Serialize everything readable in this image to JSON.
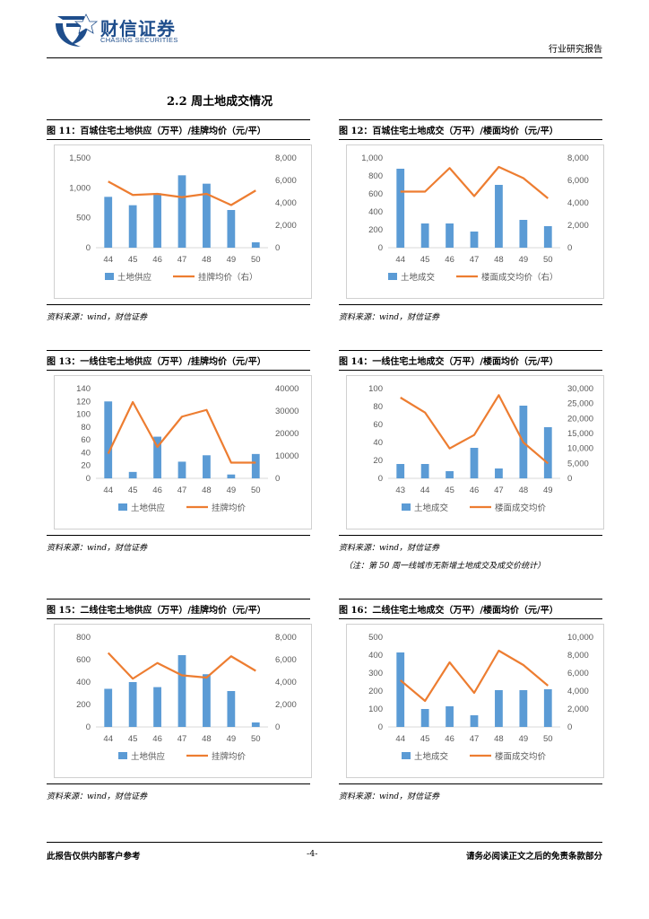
{
  "header": {
    "logo_cn": "财信证券",
    "logo_en": "CHASING SECURITIES",
    "report_type": "行业研究报告"
  },
  "section_title": "2.2 周土地成交情况",
  "figures": [
    {
      "title": "图 11：百城住宅土地供应（万平）/挂牌均价（元/平）",
      "source": "资料来源：wind，财信证券",
      "note": ""
    },
    {
      "title": "图 12：百城住宅土地成交（万平）/楼面均价（元/平）",
      "source": "资料来源：wind，财信证券",
      "note": ""
    },
    {
      "title": "图 13：一线住宅土地供应（万平）/挂牌均价（元/平）",
      "source": "资料来源：wind，财信证券",
      "note": ""
    },
    {
      "title": "图 14：一线住宅土地成交（万平）/楼面均价（元/平）",
      "source": "资料来源：wind，财信证券",
      "note": "（注：第 50 周一线城市无新增土地成交及成交价统计）"
    },
    {
      "title": "图 15：二线住宅土地供应（万平）/挂牌均价（元/平）",
      "source": "资料来源：wind，财信证券",
      "note": ""
    },
    {
      "title": "图 16：二线住宅土地成交（万平）/楼面均价（元/平）",
      "source": "资料来源：wind，财信证券",
      "note": ""
    }
  ],
  "colors": {
    "bar": "#5b9bd5",
    "line": "#ed7d31",
    "axis": "#d9d9d9",
    "tick": "#595959",
    "logo": "#1f4e8c"
  },
  "chart_data": [
    {
      "type": "bar+line",
      "categories": [
        "44",
        "45",
        "46",
        "47",
        "48",
        "49",
        "50"
      ],
      "series": [
        {
          "name": "土地供应",
          "axis": "left",
          "type": "bar",
          "values": [
            850,
            710,
            910,
            1210,
            1070,
            630,
            90
          ]
        },
        {
          "name": "挂牌均价（右）",
          "axis": "right",
          "type": "line",
          "values": [
            5900,
            4700,
            4800,
            4500,
            4800,
            3800,
            5100
          ]
        }
      ],
      "ylim_left": [
        0,
        1500
      ],
      "yticks_left": [
        "0",
        "500",
        "1,000",
        "1,500"
      ],
      "ytick_values_left": [
        0,
        500,
        1000,
        1500
      ],
      "ylim_right": [
        0,
        8000
      ],
      "yticks_right": [
        "0",
        "2,000",
        "4,000",
        "6,000",
        "8,000"
      ],
      "ytick_values_right": [
        0,
        2000,
        4000,
        6000,
        8000
      ],
      "legend": "bottom"
    },
    {
      "type": "bar+line",
      "categories": [
        "44",
        "45",
        "46",
        "47",
        "48",
        "49",
        "50"
      ],
      "series": [
        {
          "name": "土地成交",
          "axis": "left",
          "type": "bar",
          "values": [
            880,
            270,
            270,
            180,
            700,
            310,
            240
          ]
        },
        {
          "name": "楼面成交均价（右）",
          "axis": "right",
          "type": "line",
          "values": [
            5000,
            5000,
            7100,
            4600,
            7200,
            6200,
            4400
          ]
        }
      ],
      "ylim_left": [
        0,
        1000
      ],
      "yticks_left": [
        "0",
        "200",
        "400",
        "600",
        "800",
        "1,000"
      ],
      "ytick_values_left": [
        0,
        200,
        400,
        600,
        800,
        1000
      ],
      "ylim_right": [
        0,
        8000
      ],
      "yticks_right": [
        "0",
        "2,000",
        "4,000",
        "6,000",
        "8,000"
      ],
      "ytick_values_right": [
        0,
        2000,
        4000,
        6000,
        8000
      ],
      "legend": "bottom"
    },
    {
      "type": "bar+line",
      "categories": [
        "44",
        "45",
        "46",
        "47",
        "48",
        "49",
        "50"
      ],
      "series": [
        {
          "name": "土地供应",
          "axis": "left",
          "type": "bar",
          "values": [
            120,
            10,
            65,
            26,
            36,
            6,
            38
          ]
        },
        {
          "name": "挂牌均价",
          "axis": "right",
          "type": "line",
          "values": [
            11000,
            34000,
            14000,
            27500,
            30500,
            7000,
            7000
          ]
        }
      ],
      "ylim_left": [
        0,
        140
      ],
      "yticks_left": [
        "0",
        "20",
        "40",
        "60",
        "80",
        "100",
        "120",
        "140"
      ],
      "ytick_values_left": [
        0,
        20,
        40,
        60,
        80,
        100,
        120,
        140
      ],
      "ylim_right": [
        0,
        40000
      ],
      "yticks_right": [
        "0",
        "10000",
        "20000",
        "30000",
        "40000"
      ],
      "ytick_values_right": [
        0,
        10000,
        20000,
        30000,
        40000
      ],
      "legend": "bottom"
    },
    {
      "type": "bar+line",
      "categories": [
        "43",
        "44",
        "45",
        "46",
        "47",
        "48",
        "49"
      ],
      "series": [
        {
          "name": "土地成交",
          "axis": "left",
          "type": "bar",
          "values": [
            16,
            16,
            8,
            34,
            11,
            81,
            57
          ]
        },
        {
          "name": "楼面成交均价",
          "axis": "right",
          "type": "line",
          "values": [
            27000,
            22000,
            10000,
            14500,
            27800,
            12000,
            5000
          ]
        }
      ],
      "ylim_left": [
        0,
        100
      ],
      "yticks_left": [
        "0",
        "20",
        "40",
        "60",
        "80",
        "100"
      ],
      "ytick_values_left": [
        0,
        20,
        40,
        60,
        80,
        100
      ],
      "ylim_right": [
        0,
        30000
      ],
      "yticks_right": [
        "0",
        "5,000",
        "10,000",
        "15,000",
        "20,000",
        "25,000",
        "30,000"
      ],
      "ytick_values_right": [
        0,
        5000,
        10000,
        15000,
        20000,
        25000,
        30000
      ],
      "legend": "bottom"
    },
    {
      "type": "bar+line",
      "categories": [
        "44",
        "45",
        "46",
        "47",
        "48",
        "49",
        "50"
      ],
      "series": [
        {
          "name": "土地供应",
          "axis": "left",
          "type": "bar",
          "values": [
            340,
            400,
            355,
            640,
            470,
            320,
            40
          ]
        },
        {
          "name": "挂牌均价",
          "axis": "right",
          "type": "line",
          "values": [
            6600,
            4300,
            5700,
            4600,
            4400,
            6300,
            5000
          ]
        }
      ],
      "ylim_left": [
        0,
        800
      ],
      "yticks_left": [
        "0",
        "200",
        "400",
        "600",
        "800"
      ],
      "ytick_values_left": [
        0,
        200,
        400,
        600,
        800
      ],
      "ylim_right": [
        0,
        8000
      ],
      "yticks_right": [
        "0",
        "2,000",
        "4,000",
        "6,000",
        "8,000"
      ],
      "ytick_values_right": [
        0,
        2000,
        4000,
        6000,
        8000
      ],
      "legend": "bottom"
    },
    {
      "type": "bar+line",
      "categories": [
        "44",
        "45",
        "46",
        "47",
        "48",
        "49",
        "50"
      ],
      "series": [
        {
          "name": "土地成交",
          "axis": "left",
          "type": "bar",
          "values": [
            415,
            100,
            115,
            65,
            205,
            205,
            210
          ]
        },
        {
          "name": "楼面成交均价",
          "axis": "right",
          "type": "line",
          "values": [
            5200,
            2900,
            7200,
            3800,
            8500,
            6900,
            4600
          ]
        }
      ],
      "ylim_left": [
        0,
        500
      ],
      "yticks_left": [
        "0",
        "100",
        "200",
        "300",
        "400",
        "500"
      ],
      "ytick_values_left": [
        0,
        100,
        200,
        300,
        400,
        500
      ],
      "ylim_right": [
        0,
        10000
      ],
      "yticks_right": [
        "0",
        "2,000",
        "4,000",
        "6,000",
        "8,000",
        "10,000"
      ],
      "ytick_values_right": [
        0,
        2000,
        4000,
        6000,
        8000,
        10000
      ],
      "legend": "bottom"
    }
  ],
  "footer": {
    "left": "此报告仅供内部客户参考",
    "page": "-4-",
    "right": "请务必阅读正文之后的免责条款部分"
  }
}
